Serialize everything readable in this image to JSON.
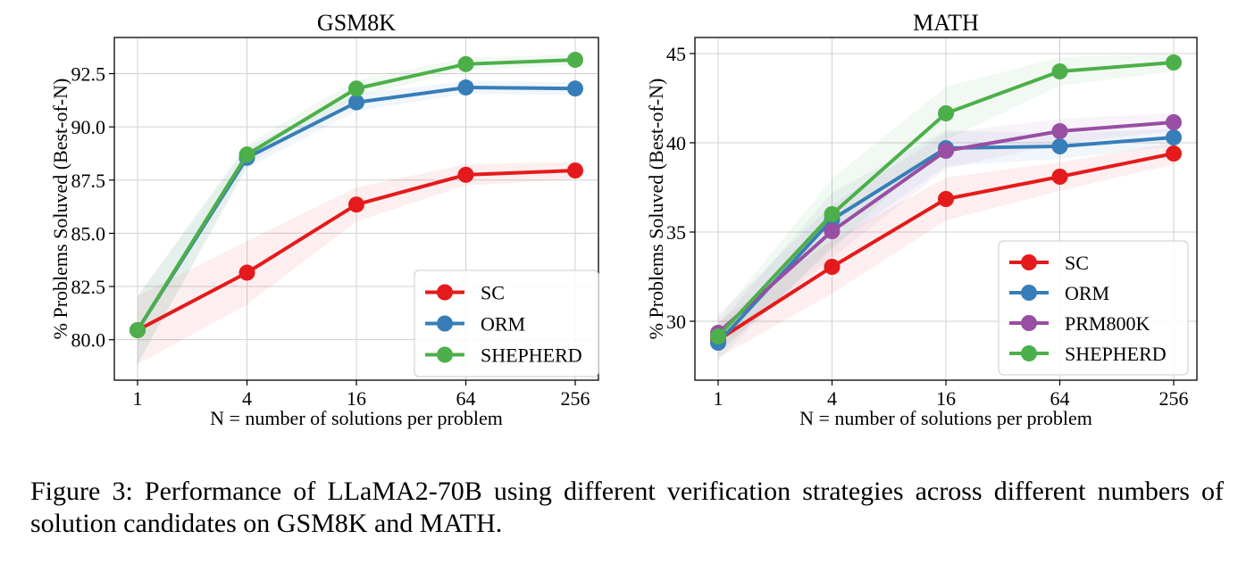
{
  "chart_data": [
    {
      "type": "line",
      "title": "GSM8K",
      "xlabel": "N = number of solutions per problem",
      "ylabel": "% Problems Soluved (Best-of-N)",
      "x": [
        1,
        4,
        16,
        64,
        256
      ],
      "x_tick_labels": [
        "1",
        "4",
        "16",
        "64",
        "256"
      ],
      "x_scale": "log",
      "ylim": [
        78.1,
        94.2
      ],
      "y_ticks": [
        80.0,
        82.5,
        85.0,
        87.5,
        90.0,
        92.5
      ],
      "y_tick_labels": [
        "80.0",
        "82.5",
        "85.0",
        "87.5",
        "90.0",
        "92.5"
      ],
      "grid": true,
      "legend_position": "lower-right",
      "series": [
        {
          "name": "SC",
          "color": "#e41a1c",
          "values": [
            80.45,
            83.15,
            86.35,
            87.75,
            87.95
          ],
          "band": [
            1.6,
            1.5,
            0.8,
            0.5,
            0.4
          ]
        },
        {
          "name": "ORM",
          "color": "#377eb8",
          "values": [
            80.45,
            88.55,
            91.15,
            91.85,
            91.8
          ],
          "band": [
            1.6,
            0.5,
            0.4,
            0.3,
            0.3
          ]
        },
        {
          "name": "SHEPHERD",
          "color": "#4daf4a",
          "values": [
            80.45,
            88.7,
            91.8,
            92.95,
            93.15
          ],
          "band": [
            1.6,
            0.5,
            0.4,
            0.3,
            0.25
          ]
        }
      ]
    },
    {
      "type": "line",
      "title": "MATH",
      "xlabel": "N = number of solutions per problem",
      "ylabel": "% Problems Soluved (Best-of-N)",
      "x": [
        1,
        4,
        16,
        64,
        256
      ],
      "x_tick_labels": [
        "1",
        "4",
        "16",
        "64",
        "256"
      ],
      "x_scale": "log",
      "ylim": [
        26.7,
        45.9
      ],
      "y_ticks": [
        30,
        35,
        40,
        45
      ],
      "y_tick_labels": [
        "30",
        "35",
        "40",
        "45"
      ],
      "grid": true,
      "legend_position": "lower-right",
      "series": [
        {
          "name": "SC",
          "color": "#e41a1c",
          "values": [
            28.95,
            33.05,
            36.85,
            38.1,
            39.4
          ],
          "band": [
            1.0,
            1.5,
            1.2,
            0.8,
            0.6
          ]
        },
        {
          "name": "ORM",
          "color": "#377eb8",
          "values": [
            28.8,
            35.7,
            39.7,
            39.8,
            40.3
          ],
          "band": [
            1.0,
            1.5,
            1.0,
            0.7,
            0.5
          ]
        },
        {
          "name": "PRM800K",
          "color": "#984ea3",
          "values": [
            29.35,
            35.05,
            39.55,
            40.65,
            41.15
          ],
          "band": [
            1.0,
            1.5,
            1.0,
            0.7,
            0.5
          ]
        },
        {
          "name": "SHEPHERD",
          "color": "#4daf4a",
          "values": [
            29.15,
            36.0,
            41.65,
            44.0,
            44.5
          ],
          "band": [
            1.0,
            2.0,
            1.5,
            0.8,
            0.5
          ]
        }
      ]
    }
  ],
  "caption": "Figure 3: Performance of LLaMA2-70B using different verification strategies across different numbers of solution candidates on GSM8K and MATH."
}
